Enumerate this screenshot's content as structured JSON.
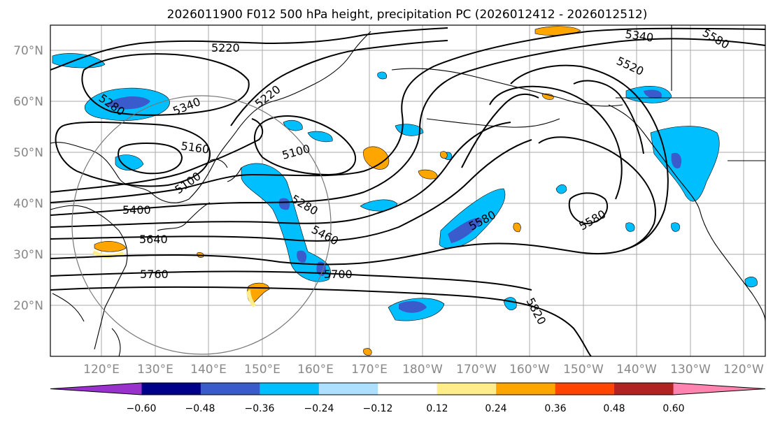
{
  "title": "2026011900 F012 500 hPa height, precipitation PC (2026012412 - 2026012512)",
  "lat_labels": [
    "70°N",
    "60°N",
    "50°N",
    "40°N",
    "30°N",
    "20°N"
  ],
  "lon_labels": [
    "120°E",
    "130°E",
    "140°E",
    "150°E",
    "160°E",
    "170°E",
    "180°W",
    "170°W",
    "160°W",
    "150°W",
    "140°W",
    "130°W",
    "120°W"
  ],
  "contour_labels": [
    "5220",
    "5340",
    "5580",
    "5280",
    "5340",
    "5220",
    "5520",
    "5160",
    "5100",
    "5100",
    "5400",
    "5280",
    "5460",
    "5580",
    "5580",
    "5640",
    "5760",
    "5700",
    "5820"
  ],
  "colorbar": {
    "colors": [
      "#9932CC",
      "#00008B",
      "#3A5BCC",
      "#00BFFF",
      "#ADDFFF",
      "#FFFFFF",
      "#FFEC8B",
      "#FFA500",
      "#FF4500",
      "#B22222",
      "#FF85B0"
    ],
    "ticks": [
      "−0.60",
      "−0.48",
      "−0.36",
      "−0.24",
      "−0.12",
      "0.12",
      "0.24",
      "0.36",
      "0.48",
      "0.60"
    ]
  }
}
